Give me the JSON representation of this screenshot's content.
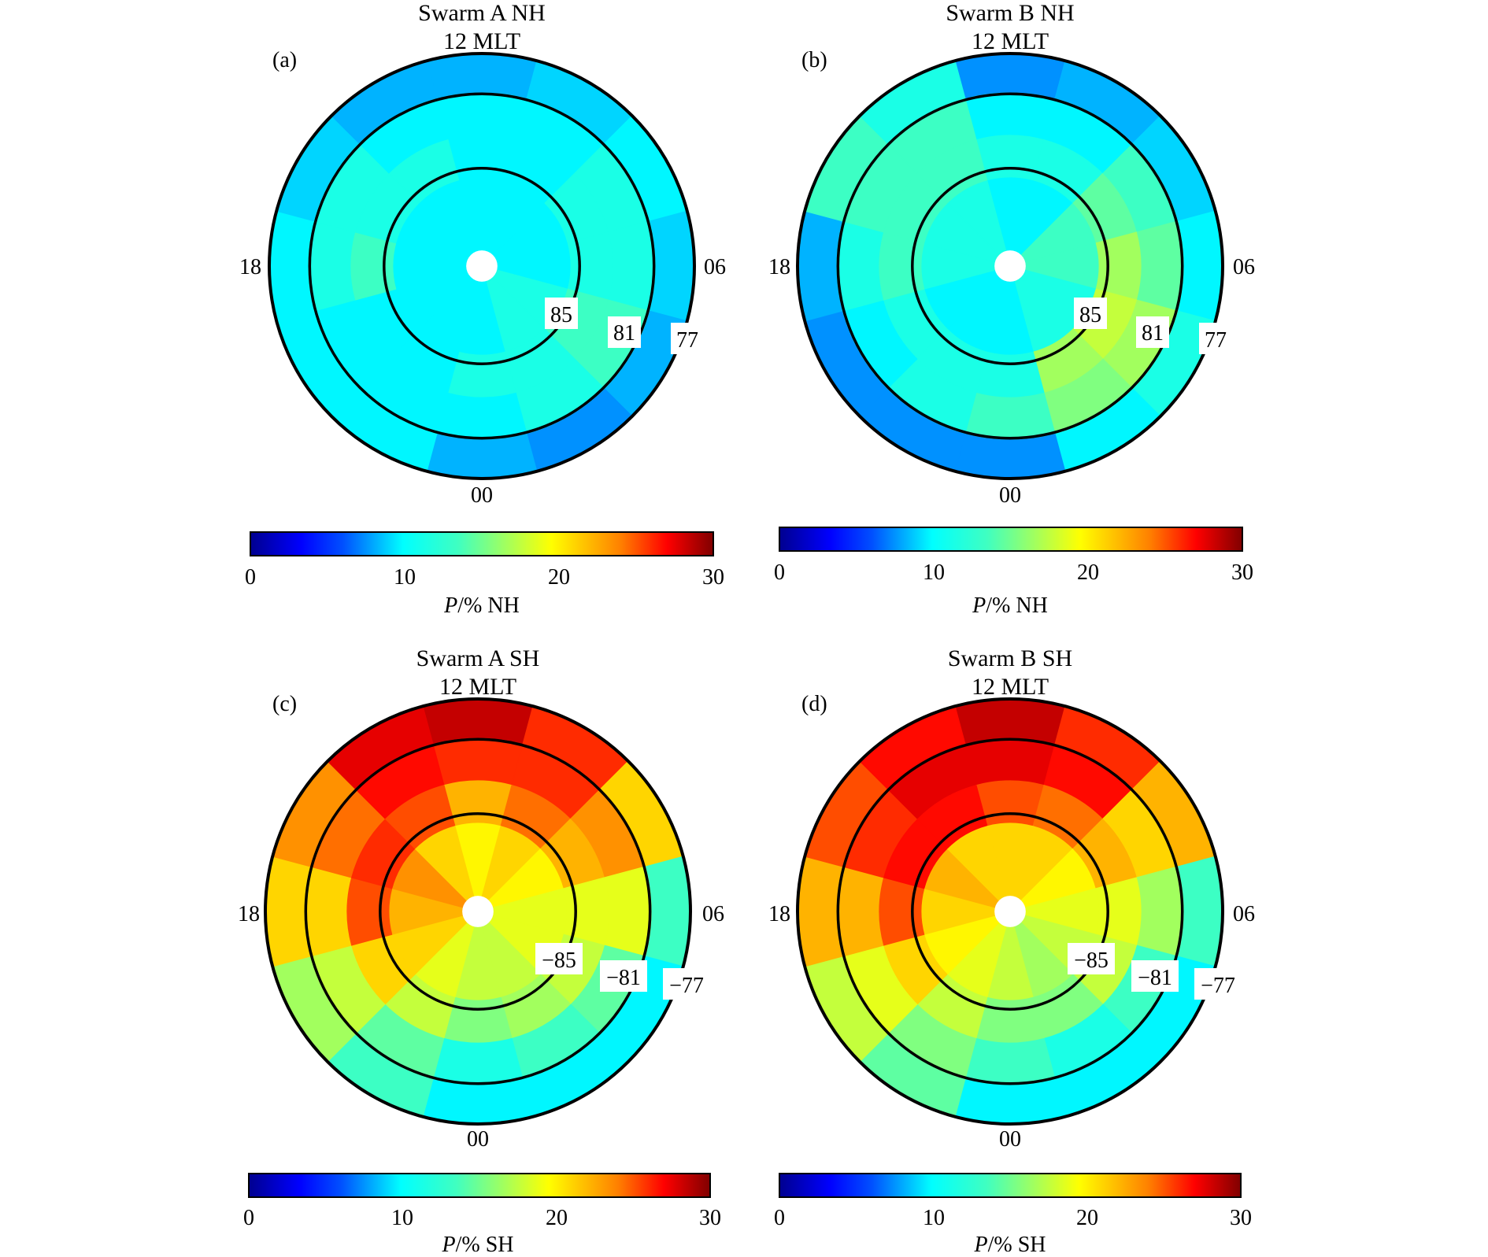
{
  "figure": {
    "colorbar_range": [
      0,
      30
    ],
    "colorbar_ticks": [
      "0",
      "10",
      "20",
      "30"
    ],
    "colormap": [
      "#00008f",
      "#0000ff",
      "#0080ff",
      "#00ffff",
      "#80ff80",
      "#ffff00",
      "#ff8000",
      "#ff0000",
      "#800000"
    ]
  },
  "chart_data": [
    {
      "type": "heatmap",
      "projection": "polar",
      "panel_label": "(a)",
      "title": "Swarm A NH",
      "subtitle": "12 MLT",
      "mlt_labels": {
        "top": "12 MLT",
        "left": "18",
        "right": "06",
        "bottom": "00"
      },
      "lat_labels": [
        "85",
        "81",
        "77"
      ],
      "colorbar_label": "P/% NH",
      "colorbar_label_italic": "P",
      "colorbar_label_rest": "/% NH",
      "mlt_bins": 12,
      "rings": [
        {
          "lat_range": "73-77",
          "values": [
            9,
            10,
            11,
            10,
            9,
            8,
            9,
            11,
            11,
            11,
            10,
            9
          ]
        },
        {
          "lat_range": "77-81",
          "values": [
            11,
            11,
            12,
            12,
            13,
            12,
            11,
            11,
            11,
            12,
            12,
            11
          ]
        },
        {
          "lat_range": "81-85",
          "values": [
            11,
            11,
            12,
            12,
            13,
            12,
            12,
            11,
            11,
            13,
            12,
            12
          ]
        },
        {
          "lat_range": "85-89",
          "values": [
            11,
            11,
            11,
            11,
            12,
            12,
            11,
            11,
            11,
            11,
            11,
            11
          ]
        }
      ]
    },
    {
      "type": "heatmap",
      "projection": "polar",
      "panel_label": "(b)",
      "title": "Swarm B NH",
      "subtitle": "12 MLT",
      "mlt_labels": {
        "top": "12 MLT",
        "left": "18",
        "right": "06",
        "bottom": "00"
      },
      "lat_labels": [
        "85",
        "81",
        "77"
      ],
      "colorbar_label": "P/% NH",
      "colorbar_label_italic": "P",
      "colorbar_label_rest": "/% NH",
      "mlt_bins": 12,
      "rings": [
        {
          "lat_range": "73-77",
          "values": [
            8,
            9,
            10,
            11,
            12,
            11,
            8,
            8,
            8,
            9,
            13,
            12
          ]
        },
        {
          "lat_range": "77-81",
          "values": [
            11,
            11,
            13,
            14,
            16,
            15,
            13,
            12,
            11,
            12,
            13,
            13
          ]
        },
        {
          "lat_range": "81-85",
          "values": [
            12,
            12,
            14,
            16,
            17,
            16,
            12,
            12,
            12,
            13,
            13,
            13
          ]
        },
        {
          "lat_range": "85-89",
          "values": [
            11,
            11,
            13,
            13,
            12,
            12,
            11,
            11,
            11,
            12,
            12,
            12
          ]
        }
      ]
    },
    {
      "type": "heatmap",
      "projection": "polar",
      "panel_label": "(c)",
      "title": "Swarm A SH",
      "subtitle": "12 MLT",
      "mlt_labels": {
        "top": "12 MLT",
        "left": "18",
        "right": "06",
        "bottom": "00"
      },
      "lat_labels": [
        "−85",
        "−81",
        "−77"
      ],
      "colorbar_label": "P/% SH",
      "colorbar_label_italic": "P",
      "colorbar_label_rest": "/% SH",
      "mlt_bins": 12,
      "rings": [
        {
          "lat_range": "73-77",
          "values": [
            28,
            25,
            20,
            13,
            11,
            11,
            11,
            13,
            16,
            20,
            22,
            27
          ]
        },
        {
          "lat_range": "77-81",
          "values": [
            25,
            25,
            22,
            18,
            14,
            13,
            12,
            14,
            17,
            20,
            23,
            26
          ]
        },
        {
          "lat_range": "81-85",
          "values": [
            21,
            23,
            21,
            18,
            17,
            16,
            15,
            17,
            20,
            24,
            25,
            24
          ]
        },
        {
          "lat_range": "85-89",
          "values": [
            19,
            20,
            19,
            18,
            18,
            17,
            17,
            18,
            20,
            21,
            22,
            20
          ]
        }
      ]
    },
    {
      "type": "heatmap",
      "projection": "polar",
      "panel_label": "(d)",
      "title": "Swarm B SH",
      "subtitle": "12 MLT",
      "mlt_labels": {
        "top": "12 MLT",
        "left": "18",
        "right": "06",
        "bottom": "00"
      },
      "lat_labels": [
        "−85",
        "−81",
        "−77"
      ],
      "colorbar_label": "P/% SH",
      "colorbar_label_italic": "P",
      "colorbar_label_rest": "/% SH",
      "mlt_bins": 12,
      "rings": [
        {
          "lat_range": "73-77",
          "values": [
            28,
            25,
            21,
            13,
            11,
            11,
            11,
            14,
            17,
            21,
            24,
            26
          ]
        },
        {
          "lat_range": "77-81",
          "values": [
            27,
            26,
            20,
            16,
            13,
            12,
            13,
            15,
            18,
            21,
            25,
            27
          ]
        },
        {
          "lat_range": "81-85",
          "values": [
            24,
            23,
            21,
            18,
            17,
            15,
            15,
            17,
            20,
            24,
            26,
            26
          ]
        },
        {
          "lat_range": "85-89",
          "values": [
            20,
            20,
            19,
            18,
            17,
            16,
            17,
            18,
            19,
            20,
            21,
            20
          ]
        }
      ]
    }
  ]
}
